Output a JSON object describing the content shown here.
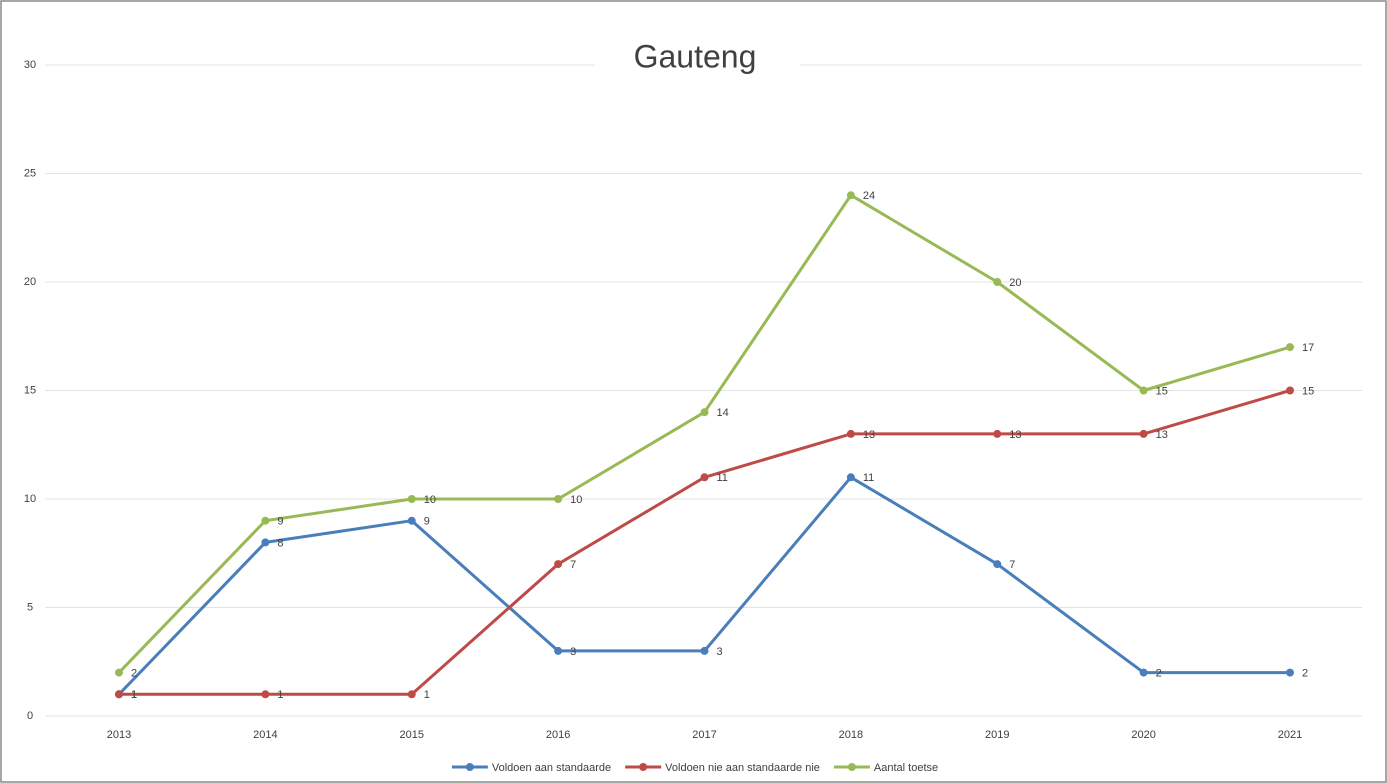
{
  "chart_data": {
    "type": "line",
    "title": "Gauteng",
    "categories": [
      "2013",
      "2014",
      "2015",
      "2016",
      "2017",
      "2018",
      "2019",
      "2020",
      "2021"
    ],
    "series": [
      {
        "name": "Voldoen aan standaarde",
        "color": "#4a7ebb",
        "values": [
          1,
          8,
          9,
          3,
          3,
          11,
          7,
          2,
          2
        ]
      },
      {
        "name": "Voldoen nie aan standaarde nie",
        "color": "#be4b48",
        "values": [
          1,
          1,
          1,
          7,
          11,
          13,
          13,
          13,
          15
        ]
      },
      {
        "name": "Aantal toetse",
        "color": "#98b954",
        "values": [
          2,
          9,
          10,
          10,
          14,
          24,
          20,
          15,
          17
        ]
      }
    ],
    "ylim": [
      0,
      30
    ],
    "yticks": [
      0,
      5,
      10,
      15,
      20,
      25,
      30
    ],
    "grid": true,
    "legend": "bottom"
  }
}
